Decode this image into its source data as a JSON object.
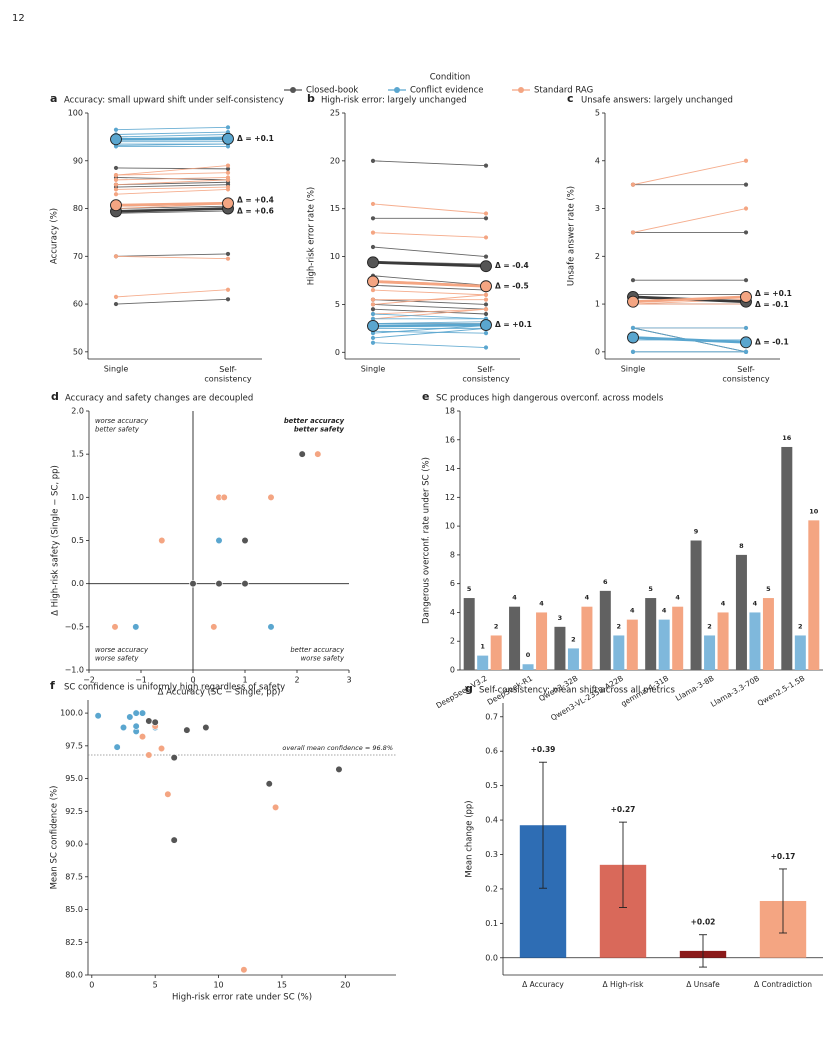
{
  "page_number": "12",
  "chart_data": [
    {
      "panel": "a",
      "type": "slope",
      "title": "Accuracy: small upward shift under self-consistency",
      "legend_title": "Condition",
      "categories": [
        "Single",
        "Self-consistency"
      ],
      "ylabel": "Accuracy (%)",
      "ylim": [
        48.5,
        100
      ],
      "yticks": [
        50,
        60,
        70,
        80,
        90,
        100
      ],
      "series": [
        {
          "name": "Closed-book",
          "color": "#555555",
          "lines": [
            {
              "values": [
                60,
                61
              ]
            },
            {
              "values": [
                70,
                70.5
              ]
            },
            {
              "values": [
                79,
                79.5
              ]
            },
            {
              "values": [
                80,
                80.5
              ]
            },
            {
              "values": [
                84.5,
                85
              ]
            },
            {
              "values": [
                85,
                85.5
              ]
            },
            {
              "values": [
                88.5,
                88.3
              ]
            },
            {
              "values": [
                86.5,
                86
              ]
            },
            {
              "values": [
                80.5,
                81
              ]
            }
          ],
          "mean": {
            "values": [
              79.4,
              80.0
            ],
            "label": "Δ = +0.6"
          }
        },
        {
          "name": "Conflict evidence",
          "color": "#5aa6cf",
          "lines": [
            {
              "values": [
                96.5,
                97
              ]
            },
            {
              "values": [
                95,
                95.5
              ]
            },
            {
              "values": [
                94.5,
                94.5
              ]
            },
            {
              "values": [
                94,
                94
              ]
            },
            {
              "values": [
                93.5,
                93.5
              ]
            },
            {
              "values": [
                93,
                93
              ]
            },
            {
              "values": [
                94.5,
                95
              ]
            },
            {
              "values": [
                95.5,
                96
              ]
            },
            {
              "values": [
                93.2,
                93.5
              ]
            }
          ],
          "mean": {
            "values": [
              94.5,
              94.6
            ],
            "label": "Δ = +0.1"
          }
        },
        {
          "name": "Standard RAG",
          "color": "#f4a582",
          "lines": [
            {
              "values": [
                61.5,
                63
              ]
            },
            {
              "values": [
                70,
                69.5
              ]
            },
            {
              "values": [
                80,
                81
              ]
            },
            {
              "values": [
                83,
                84
              ]
            },
            {
              "values": [
                84,
                84.5
              ]
            },
            {
              "values": [
                85,
                86
              ]
            },
            {
              "values": [
                86,
                86.5
              ]
            },
            {
              "values": [
                87,
                87.5
              ]
            },
            {
              "values": [
                87,
                89
              ]
            }
          ],
          "mean": {
            "values": [
              80.7,
              81.1
            ],
            "label": "Δ = +0.4"
          }
        }
      ]
    },
    {
      "panel": "b",
      "type": "slope",
      "title": "High-risk error: largely unchanged",
      "categories": [
        "Single",
        "Self-consistency"
      ],
      "ylabel": "High-risk error rate (%)",
      "ylim": [
        -0.7,
        25
      ],
      "yticks": [
        0,
        5,
        10,
        15,
        20,
        25
      ],
      "series": [
        {
          "color": "#555555",
          "lines": [
            {
              "values": [
                20,
                19.5
              ]
            },
            {
              "values": [
                14,
                14
              ]
            },
            {
              "values": [
                8,
                7
              ]
            },
            {
              "values": [
                7,
                6.5
              ]
            },
            {
              "values": [
                5.5,
                5
              ]
            },
            {
              "values": [
                5,
                4.5
              ]
            },
            {
              "values": [
                4.5,
                4
              ]
            },
            {
              "values": [
                9.5,
                9.2
              ]
            },
            {
              "values": [
                11,
                10
              ]
            }
          ],
          "mean": {
            "values": [
              9.4,
              9.0
            ],
            "label": "Δ = -0.4"
          }
        },
        {
          "color": "#f4a582",
          "lines": [
            {
              "values": [
                15.5,
                14.5
              ]
            },
            {
              "values": [
                12.5,
                12
              ]
            },
            {
              "values": [
                7.5,
                7
              ]
            },
            {
              "values": [
                6.5,
                6
              ]
            },
            {
              "values": [
                5.5,
                5.5
              ]
            },
            {
              "values": [
                5,
                6
              ]
            },
            {
              "values": [
                4,
                4.5
              ]
            },
            {
              "values": [
                3.5,
                4.5
              ]
            },
            {
              "values": [
                3,
                3
              ]
            }
          ],
          "mean": {
            "values": [
              7.4,
              6.9
            ],
            "label": "Δ = -0.5"
          }
        },
        {
          "color": "#5aa6cf",
          "lines": [
            {
              "values": [
                3,
                3
              ]
            },
            {
              "values": [
                2.5,
                2.5
              ]
            },
            {
              "values": [
                1.5,
                2.5
              ]
            },
            {
              "values": [
                1,
                0.5
              ]
            },
            {
              "values": [
                3.5,
                3.5
              ]
            },
            {
              "values": [
                2,
                2.8
              ]
            },
            {
              "values": [
                4,
                3.5
              ]
            },
            {
              "values": [
                3,
                3.2
              ]
            },
            {
              "values": [
                2.2,
                2
              ]
            }
          ],
          "mean": {
            "values": [
              2.75,
              2.85
            ],
            "label": "Δ = +0.1"
          }
        }
      ]
    },
    {
      "panel": "c",
      "type": "slope",
      "title": "Unsafe answers: largely unchanged",
      "categories": [
        "Single",
        "Self-consistency"
      ],
      "ylabel": "Unsafe answer rate (%)",
      "ylim": [
        -0.15,
        5
      ],
      "yticks": [
        0,
        1,
        2,
        3,
        4,
        5
      ],
      "series": [
        {
          "color": "#555555",
          "lines": [
            {
              "values": [
                3.5,
                3.5
              ]
            },
            {
              "values": [
                2.5,
                2.5
              ]
            },
            {
              "values": [
                1.5,
                1.5
              ]
            },
            {
              "values": [
                1,
                1
              ]
            },
            {
              "values": [
                1.2,
                1.2
              ]
            },
            {
              "values": [
                0.5,
                0
              ]
            }
          ],
          "mean": {
            "values": [
              1.15,
              1.05
            ],
            "label": "Δ = -0.1"
          }
        },
        {
          "color": "#f4a582",
          "lines": [
            {
              "values": [
                3.5,
                4
              ]
            },
            {
              "values": [
                2.5,
                3
              ]
            },
            {
              "values": [
                0.5,
                0.5
              ]
            },
            {
              "values": [
                1,
                1
              ]
            },
            {
              "values": [
                0,
                0
              ]
            },
            {
              "values": [
                1,
                1.1
              ]
            }
          ],
          "mean": {
            "values": [
              1.05,
              1.15
            ],
            "label": "Δ = +0.1"
          }
        },
        {
          "color": "#5aa6cf",
          "lines": [
            {
              "values": [
                0.5,
                0
              ]
            },
            {
              "values": [
                0,
                0
              ]
            },
            {
              "values": [
                0.25,
                0.25
              ]
            },
            {
              "values": [
                0.5,
                0.5
              ]
            },
            {
              "values": [
                0,
                0
              ]
            }
          ],
          "mean": {
            "values": [
              0.3,
              0.2
            ],
            "label": "Δ = -0.1"
          }
        }
      ]
    },
    {
      "panel": "d",
      "type": "scatter",
      "title": "Accuracy and safety changes are decoupled",
      "xlabel": "Δ Accuracy (SC − Single, pp)",
      "ylabel": "Δ High-risk safety (Single − SC, pp)",
      "xlim": [
        -2,
        3
      ],
      "xticks": [
        {
          "value": -2,
          "label": "−2"
        },
        {
          "value": -1,
          "label": "−1"
        },
        0,
        1,
        2,
        3
      ],
      "ylim": [
        -1,
        2
      ],
      "yticks": [
        {
          "value": -1,
          "label": "−1.0"
        },
        {
          "value": -0.5,
          "label": "−0.5"
        },
        {
          "value": 0,
          "label": "0.0"
        },
        {
          "value": 0.5,
          "label": "0.5"
        },
        {
          "value": 1,
          "label": "1.0"
        },
        {
          "value": 1.5,
          "label": "1.5"
        },
        {
          "value": 2,
          "label": "2.0"
        }
      ],
      "zero_lines": true,
      "series": [
        {
          "color": "#5aa6cf",
          "x": [
            0.5,
            -1.1,
            1.5,
            0
          ],
          "y": [
            0.5,
            -0.5,
            -0.5,
            0
          ]
        },
        {
          "color": "#f4a582",
          "x": [
            2.4,
            0.5,
            0.6,
            1.5,
            -0.6,
            0,
            -1.5,
            0.4
          ],
          "y": [
            1.5,
            1,
            1,
            1,
            0.5,
            0,
            -0.5,
            -0.5
          ]
        },
        {
          "color": "#555555",
          "x": [
            2.1,
            1,
            0.5,
            1,
            0
          ],
          "y": [
            1.5,
            0.5,
            0,
            0,
            0
          ]
        }
      ],
      "annotations": [
        {
          "lines": [
            "worse accuracy",
            "better safety"
          ],
          "corner": "top-left",
          "color": "#777777",
          "bold": false
        },
        {
          "lines": [
            "better accuracy",
            "better safety"
          ],
          "corner": "top-right",
          "color": "#3a7d22",
          "bold": true
        },
        {
          "lines": [
            "worse accuracy",
            "worse safety"
          ],
          "corner": "bottom-left",
          "color": "#777777",
          "bold": false
        },
        {
          "lines": [
            "better accuracy",
            "worse safety"
          ],
          "corner": "bottom-right",
          "color": "#b23a3a",
          "bold": false
        }
      ]
    },
    {
      "panel": "e",
      "type": "bar",
      "title": "SC produces high dangerous overconf. across models",
      "ylabel": "Dangerous overconf. rate under SC (%)",
      "categories": [
        "DeepSeek-V3.2",
        "DeepSeek-R1",
        "Qwen3-32B",
        "Qwen3-VL-235B-A22B",
        "gemma-4-31B",
        "Llama-3-8B",
        "Llama-3.3-70B",
        "Qwen2.5-1.5B"
      ],
      "ylim": [
        0,
        18
      ],
      "yticks": [
        0,
        2,
        4,
        6,
        8,
        10,
        12,
        14,
        16,
        18
      ],
      "series": [
        {
          "color": "#616161",
          "label_color": "#444444",
          "values": [
            5,
            4.4,
            3,
            5.5,
            5,
            9,
            8,
            15.5
          ],
          "value_labels": [
            "5",
            "4",
            "3",
            "6",
            "5",
            "9",
            "8",
            "16"
          ]
        },
        {
          "color": "#7fb8dc",
          "label_color": "#5aa6cf",
          "values": [
            1,
            0.4,
            1.5,
            2.4,
            3.5,
            2.4,
            4,
            2.4
          ],
          "value_labels": [
            "1",
            "0",
            "2",
            "2",
            "4",
            "2",
            "4",
            "2"
          ]
        },
        {
          "color": "#f4a582",
          "label_color": "#f4a582",
          "values": [
            2.4,
            4,
            4.4,
            3.5,
            4.4,
            4,
            5,
            10.4
          ],
          "value_labels": [
            "2",
            "4",
            "4",
            "4",
            "4",
            "4",
            "5",
            "10"
          ]
        }
      ]
    },
    {
      "panel": "f",
      "type": "scatter",
      "title": "SC confidence is uniformly high regardless of safety",
      "xlabel": "High-risk error rate under SC (%)",
      "ylabel": "Mean SC confidence (%)",
      "xlim": [
        -0.3,
        24
      ],
      "xticks": [
        0,
        5,
        10,
        15,
        20
      ],
      "ylim": [
        80,
        101
      ],
      "yticks": [
        {
          "value": 80,
          "label": "80.0"
        },
        {
          "value": 82.5,
          "label": "82.5"
        },
        {
          "value": 85,
          "label": "85.0"
        },
        {
          "value": 87.5,
          "label": "87.5"
        },
        {
          "value": 90,
          "label": "90.0"
        },
        {
          "value": 92.5,
          "label": "92.5"
        },
        {
          "value": 95,
          "label": "95.0"
        },
        {
          "value": 97.5,
          "label": "97.5"
        },
        {
          "value": 100,
          "label": "100.0"
        }
      ],
      "reference_line": {
        "value": 96.8,
        "label": "overall mean confidence = 96.8%"
      },
      "series": [
        {
          "color": "#5aa6cf",
          "x": [
            0.5,
            2,
            2.5,
            3,
            3.5,
            4,
            3.5,
            4,
            3.5,
            5
          ],
          "y": [
            99.8,
            97.4,
            98.9,
            99.7,
            100,
            100,
            98.6,
            98.2,
            99.0,
            98.9
          ]
        },
        {
          "color": "#f4a582",
          "x": [
            4.5,
            5,
            5.5,
            6,
            14.5,
            12,
            4
          ],
          "y": [
            96.8,
            99,
            97.3,
            93.8,
            92.8,
            80.4,
            98.2
          ]
        },
        {
          "color": "#555555",
          "x": [
            4.5,
            5,
            7.5,
            9,
            6.5,
            6.5,
            14,
            19.5
          ],
          "y": [
            99.4,
            99.3,
            98.7,
            98.9,
            96.6,
            90.3,
            94.6,
            95.7
          ]
        }
      ]
    },
    {
      "panel": "g",
      "type": "errorbar",
      "title": "Self-consistency: mean shift across all metrics",
      "ylabel": "Mean change (pp)",
      "categories": [
        "Δ Accuracy",
        "Δ High-risk",
        "Δ Unsafe",
        "Δ Contradiction"
      ],
      "values": [
        0.385,
        0.27,
        0.02,
        0.165
      ],
      "value_labels": [
        "+0.39",
        "+0.27",
        "+0.02",
        "+0.17"
      ],
      "errors": [
        0.183,
        0.124,
        0.047,
        0.093
      ],
      "colors": [
        "#2e6db4",
        "#d9695a",
        "#8b1a1a",
        "#f4a582"
      ],
      "ylim": [
        -0.05,
        0.74
      ],
      "yticks": [
        {
          "value": 0,
          "label": "0.0"
        },
        {
          "value": 0.1,
          "label": "0.1"
        },
        {
          "value": 0.2,
          "label": "0.2"
        },
        {
          "value": 0.3,
          "label": "0.3"
        },
        {
          "value": 0.4,
          "label": "0.4"
        },
        {
          "value": 0.5,
          "label": "0.5"
        },
        {
          "value": 0.6,
          "label": "0.6"
        },
        {
          "value": 0.7,
          "label": "0.7"
        }
      ]
    }
  ]
}
